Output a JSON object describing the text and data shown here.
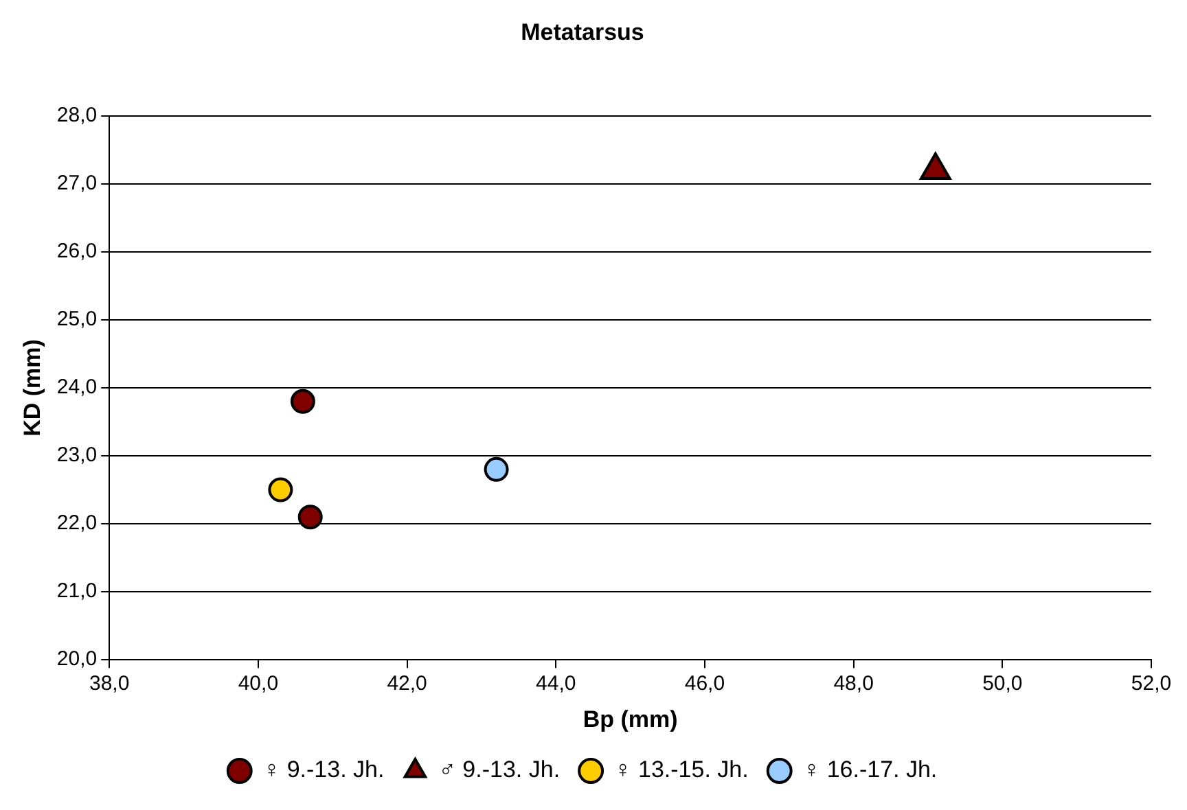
{
  "chart_data": {
    "type": "scatter",
    "title": "Metatarsus",
    "xlabel": "Bp (mm)",
    "ylabel": "KD (mm)",
    "xlim": [
      38,
      52
    ],
    "xticks": [
      {
        "value": 38,
        "label": "38,0"
      },
      {
        "value": 40,
        "label": "40,0"
      },
      {
        "value": 42,
        "label": "42,0"
      },
      {
        "value": 44,
        "label": "44,0"
      },
      {
        "value": 46,
        "label": "46,0"
      },
      {
        "value": 48,
        "label": "48,0"
      },
      {
        "value": 50,
        "label": "50,0"
      },
      {
        "value": 52,
        "label": "52,0"
      }
    ],
    "ylim": [
      20,
      28
    ],
    "yticks": [
      {
        "value": 20,
        "label": "20,0"
      },
      {
        "value": 21,
        "label": "21,0"
      },
      {
        "value": 22,
        "label": "22,0"
      },
      {
        "value": 23,
        "label": "23,0"
      },
      {
        "value": 24,
        "label": "24,0"
      },
      {
        "value": 25,
        "label": "25,0"
      },
      {
        "value": 26,
        "label": "26,0"
      },
      {
        "value": 27,
        "label": "27,0"
      },
      {
        "value": 28,
        "label": "28,0"
      }
    ],
    "grid": "y",
    "legend": "bottom",
    "series": [
      {
        "name": "♀ 9.-13. Jh.",
        "color": "#800000",
        "marker": "circle",
        "x": [
          40.6,
          40.7
        ],
        "values": [
          23.8,
          22.1
        ]
      },
      {
        "name": "♂ 9.-13. Jh.",
        "color": "#800000",
        "marker": "triangle",
        "x": [
          49.1
        ],
        "values": [
          27.2
        ]
      },
      {
        "name": "♀ 13.-15. Jh.",
        "color": "#ffcc00",
        "marker": "circle",
        "x": [
          40.3
        ],
        "values": [
          22.5
        ]
      },
      {
        "name": "♀ 16.-17. Jh.",
        "color": "#99ccff",
        "marker": "circle",
        "x": [
          43.2
        ],
        "values": [
          22.8
        ]
      }
    ]
  }
}
